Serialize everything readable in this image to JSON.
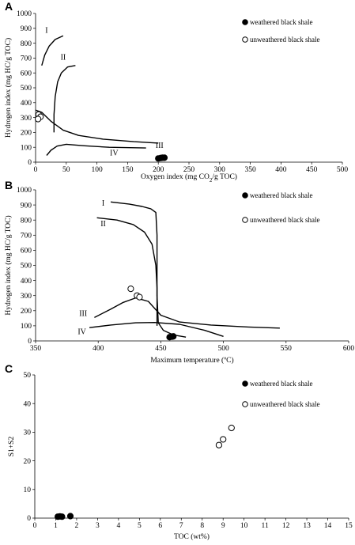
{
  "chart_data": [
    {
      "panel": "A",
      "type": "scatter",
      "xlabel_parts": [
        "Oxygen index (mg CO",
        "2",
        "/g TOC)"
      ],
      "ylabel": "Hydrogen index (mg HC/g TOC)",
      "xlim": [
        0,
        500
      ],
      "ylim": [
        0,
        1000
      ],
      "xticks": [
        0,
        50,
        100,
        150,
        200,
        250,
        300,
        350,
        400,
        450,
        500
      ],
      "yticks": [
        0,
        100,
        200,
        300,
        400,
        500,
        600,
        700,
        800,
        900,
        1000
      ],
      "legend": [
        "weathered black shale",
        "unweathered black shale"
      ],
      "legend_position": "top-right",
      "series": [
        {
          "name": "weathered black shale",
          "marker": "filled-circle",
          "points": [
            [
              200,
              25
            ],
            [
              204,
              28
            ],
            [
              207,
              30
            ],
            [
              210,
              30
            ]
          ]
        },
        {
          "name": "unweathered black shale",
          "marker": "open-circle",
          "points": [
            [
              5,
              320
            ],
            [
              8,
              305
            ],
            [
              4,
              290
            ]
          ]
        }
      ],
      "curves": [
        {
          "label": "I",
          "points": [
            [
              10,
              650
            ],
            [
              15,
              720
            ],
            [
              22,
              780
            ],
            [
              32,
              825
            ],
            [
              45,
              850
            ]
          ]
        },
        {
          "label": "II",
          "points": [
            [
              30,
              200
            ],
            [
              30,
              320
            ],
            [
              32,
              440
            ],
            [
              36,
              540
            ],
            [
              42,
              600
            ],
            [
              52,
              640
            ],
            [
              65,
              650
            ]
          ]
        },
        {
          "label": "",
          "points": [
            [
              0,
              350
            ],
            [
              10,
              335
            ],
            [
              25,
              275
            ],
            [
              45,
              215
            ],
            [
              70,
              180
            ],
            [
              110,
              155
            ],
            [
              160,
              138
            ],
            [
              200,
              128
            ]
          ]
        },
        {
          "label": "IV",
          "points": [
            [
              18,
              45
            ],
            [
              25,
              80
            ],
            [
              35,
              108
            ],
            [
              50,
              120
            ],
            [
              80,
              110
            ],
            [
              120,
              100
            ],
            [
              180,
              95
            ]
          ]
        }
      ],
      "curve_labels": [
        {
          "text": "I",
          "x": 18,
          "y": 870
        },
        {
          "text": "II",
          "x": 45,
          "y": 690
        },
        {
          "text": "III",
          "x": 202,
          "y": 95
        },
        {
          "text": "IV",
          "x": 128,
          "y": 45
        }
      ]
    },
    {
      "panel": "B",
      "type": "scatter",
      "xlabel": "Maximum temperature (ºC)",
      "ylabel": "Hydrogen index (mg HC/g TOC)",
      "xlim": [
        350,
        600
      ],
      "ylim": [
        0,
        1000
      ],
      "xticks": [
        350,
        400,
        450,
        500,
        550,
        600
      ],
      "yticks": [
        0,
        100,
        200,
        300,
        400,
        500,
        600,
        700,
        800,
        900,
        1000
      ],
      "legend": [
        "weathered black shale",
        "unweathered black shale"
      ],
      "legend_position": "top-right",
      "series": [
        {
          "name": "weathered black shale",
          "marker": "filled-circle",
          "points": [
            [
              457,
              25
            ],
            [
              459,
              28
            ],
            [
              460,
              30
            ]
          ]
        },
        {
          "name": "unweathered black shale",
          "marker": "open-circle",
          "points": [
            [
              426,
              345
            ],
            [
              431,
              300
            ],
            [
              433,
              290
            ]
          ]
        }
      ],
      "curves": [
        {
          "label": "I",
          "points": [
            [
              410,
              920
            ],
            [
              425,
              905
            ],
            [
              435,
              890
            ],
            [
              442,
              875
            ],
            [
              446,
              850
            ],
            [
              447,
              700
            ],
            [
              447,
              500
            ],
            [
              447,
              300
            ],
            [
              448,
              120
            ],
            [
              452,
              70
            ],
            [
              460,
              40
            ],
            [
              470,
              25
            ]
          ]
        },
        {
          "label": "II",
          "points": [
            [
              399,
              815
            ],
            [
              415,
              800
            ],
            [
              428,
              770
            ],
            [
              437,
              720
            ],
            [
              443,
              640
            ],
            [
              446,
              500
            ],
            [
              447,
              350
            ],
            [
              447,
              200
            ],
            [
              447,
              100
            ]
          ]
        },
        {
          "label": "III",
          "points": [
            [
              397,
              155
            ],
            [
              410,
              210
            ],
            [
              420,
              255
            ],
            [
              430,
              285
            ],
            [
              440,
              262
            ],
            [
              450,
              170
            ],
            [
              465,
              125
            ],
            [
              490,
              105
            ],
            [
              520,
              92
            ],
            [
              545,
              85
            ]
          ]
        },
        {
          "label": "IV",
          "points": [
            [
              393,
              88
            ],
            [
              410,
              105
            ],
            [
              430,
              120
            ],
            [
              445,
              122
            ],
            [
              465,
              110
            ],
            [
              485,
              70
            ],
            [
              500,
              30
            ]
          ]
        }
      ],
      "curve_labels": [
        {
          "text": "I",
          "x": 404,
          "y": 895
        },
        {
          "text": "II",
          "x": 404,
          "y": 760
        },
        {
          "text": "III",
          "x": 388,
          "y": 165
        },
        {
          "text": "IV",
          "x": 387,
          "y": 45
        }
      ]
    },
    {
      "panel": "C",
      "type": "scatter",
      "xlabel": "TOC (wt%)",
      "ylabel": "S1+S2",
      "xlim": [
        0,
        15
      ],
      "ylim": [
        0,
        50
      ],
      "xticks": [
        0,
        1,
        2,
        3,
        4,
        5,
        6,
        7,
        8,
        9,
        10,
        11,
        12,
        13,
        14,
        15
      ],
      "yticks": [
        0,
        10,
        20,
        30,
        40,
        50
      ],
      "legend": [
        "weathered black shale",
        "unweathered black shale"
      ],
      "legend_position": "top-right",
      "series": [
        {
          "name": "weathered black shale",
          "marker": "filled-circle",
          "points": [
            [
              1.1,
              0.5
            ],
            [
              1.2,
              0.6
            ],
            [
              1.3,
              0.5
            ],
            [
              1.7,
              0.7
            ]
          ]
        },
        {
          "name": "unweathered black shale",
          "marker": "open-circle",
          "points": [
            [
              8.8,
              25.5
            ],
            [
              9.0,
              27.5
            ],
            [
              9.4,
              31.5
            ]
          ]
        }
      ],
      "curves": [],
      "curve_labels": []
    }
  ]
}
